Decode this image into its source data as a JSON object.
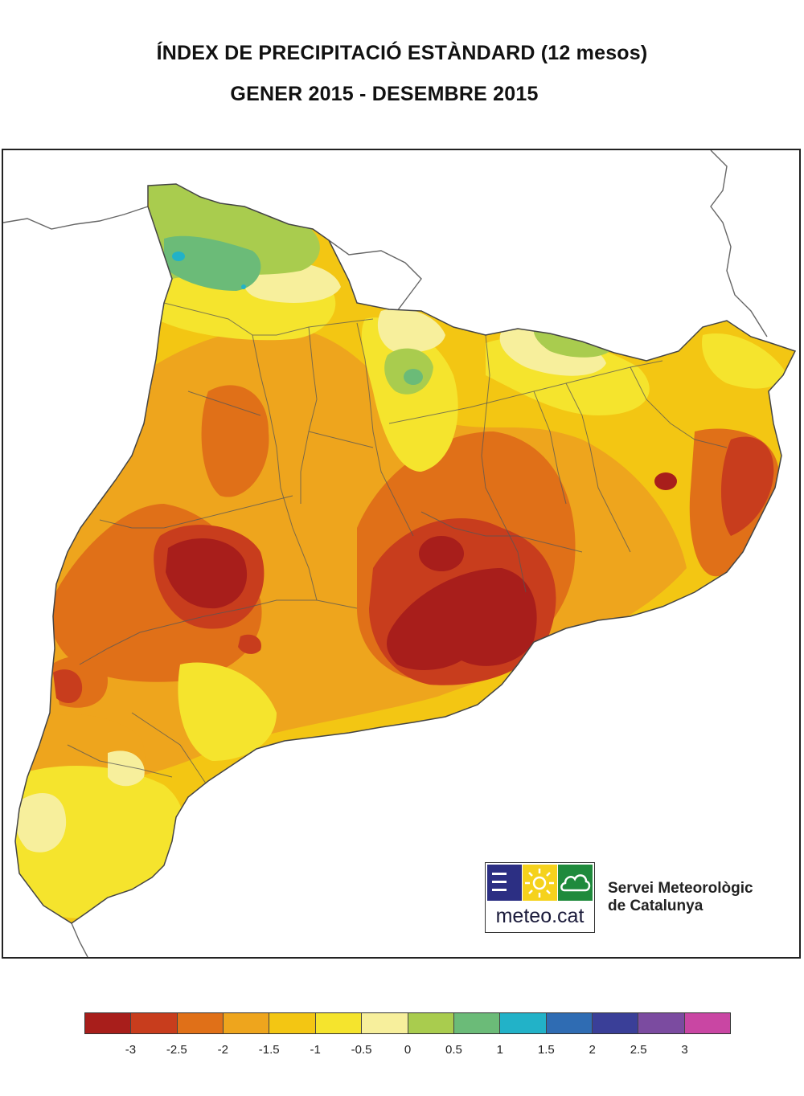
{
  "header": {
    "title": "ÍNDEX DE PRECIPITACIÓ ESTÀNDARD (12 mesos)",
    "period": "GENER 2015 - DESEMBRE 2015"
  },
  "map": {
    "region": "Catalunya",
    "palette": {
      "lt_-3": "#a81e1b",
      "-3_-2.5": "#c83d1d",
      "-2.5_-2": "#e07018",
      "-2_-1.5": "#eea51d",
      "-1.5_-1": "#f3c613",
      "-1_-0.5": "#f5e42d",
      "-0.5_0": "#f7ef9c",
      "0_0.5": "#a9cc4e",
      "0.5_1": "#6bbb78",
      "1_1.5": "#22b2c8",
      "1.5_2": "#2f6cb3",
      "2_2.5": "#3a3f98",
      "2.5_3": "#7b4ba0",
      "gt_3": "#c946a3"
    }
  },
  "logo": {
    "brand": "meteo.cat",
    "organization_line1": "Servei Meteorològic",
    "organization_line2": "de Catalunya",
    "icons": [
      "waves-icon",
      "sun-icon",
      "cloud-icon"
    ],
    "colors": [
      "#2c2f83",
      "#f5d21c",
      "#1f8a3c"
    ]
  },
  "legend": {
    "colors": [
      "#a81e1b",
      "#c83d1d",
      "#e07018",
      "#eea51d",
      "#f3c613",
      "#f5e42d",
      "#f7ef9c",
      "#a9cc4e",
      "#6bbb78",
      "#22b2c8",
      "#2f6cb3",
      "#3a3f98",
      "#7b4ba0",
      "#c946a3"
    ],
    "ticks": [
      "-3",
      "-2.5",
      "-2",
      "-1.5",
      "-1",
      "-0.5",
      "0",
      "0.5",
      "1",
      "1.5",
      "2",
      "2.5",
      "3"
    ]
  }
}
